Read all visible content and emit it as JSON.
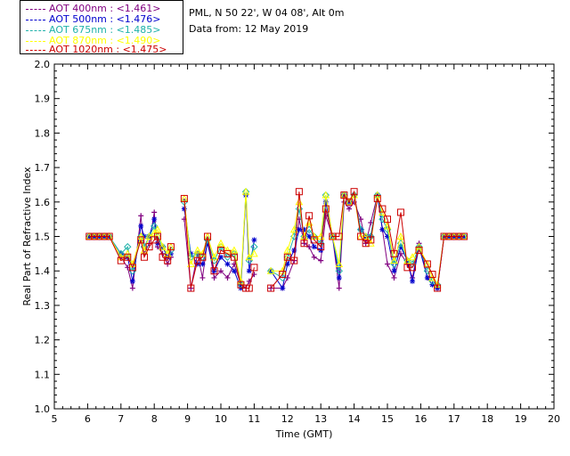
{
  "info": {
    "site": "PML, N 50 22', W 04 08', Alt 0m",
    "date": "Data from: 12 May 2019"
  },
  "chart_data": {
    "type": "line",
    "xlabel": "Time (GMT)",
    "ylabel": "Real Part of Refractive Index",
    "xlim": [
      5,
      20
    ],
    "ylim": [
      1.0,
      2.0
    ],
    "xticks": [
      "5",
      "6",
      "7",
      "8",
      "9",
      "10",
      "11",
      "12",
      "13",
      "14",
      "15",
      "16",
      "17",
      "18",
      "19",
      "20"
    ],
    "yticks": [
      "1.0",
      "1.1",
      "1.2",
      "1.3",
      "1.4",
      "1.5",
      "1.6",
      "1.7",
      "1.8",
      "1.9",
      "2.0"
    ],
    "series": [
      {
        "name": "AOT 400nm : <1.461>",
        "color": "#800080",
        "marker": "plus",
        "x": [
          6.05,
          6.2,
          6.35,
          6.5,
          6.65,
          7.0,
          7.2,
          7.35,
          7.6,
          7.7,
          7.85,
          8.0,
          8.1,
          8.25,
          8.4,
          8.5,
          8.9,
          9.1,
          9.3,
          9.45,
          9.6,
          9.8,
          10.0,
          10.2,
          10.4,
          10.6,
          10.75,
          10.85,
          11.0,
          11.5,
          11.85,
          12.0,
          12.2,
          12.35,
          12.5,
          12.65,
          12.8,
          13.0,
          13.15,
          13.35,
          13.55,
          13.7,
          13.85,
          14.0,
          14.2,
          14.35,
          14.5,
          14.7,
          14.85,
          15.0,
          15.2,
          15.4,
          15.6,
          15.75,
          15.95,
          16.2,
          16.35,
          16.5,
          16.7,
          16.85,
          17.0,
          17.15,
          17.3
        ],
        "y": [
          1.5,
          1.5,
          1.5,
          1.5,
          1.5,
          1.44,
          1.41,
          1.35,
          1.56,
          1.45,
          1.48,
          1.57,
          1.47,
          1.45,
          1.42,
          1.44,
          1.55,
          1.35,
          1.45,
          1.38,
          1.49,
          1.38,
          1.4,
          1.38,
          1.42,
          1.36,
          1.35,
          1.37,
          1.39,
          1.35,
          1.35,
          1.38,
          1.43,
          1.55,
          1.48,
          1.47,
          1.44,
          1.43,
          1.56,
          1.5,
          1.35,
          1.6,
          1.58,
          1.6,
          1.55,
          1.48,
          1.54,
          1.62,
          1.52,
          1.42,
          1.38,
          1.45,
          1.42,
          1.38,
          1.48,
          1.38,
          1.36,
          1.35,
          1.5,
          1.5,
          1.5,
          1.5,
          1.5
        ]
      },
      {
        "name": "AOT 500nm : <1.476>",
        "color": "#0000cd",
        "marker": "star",
        "x": [
          6.05,
          6.2,
          6.35,
          6.5,
          6.65,
          7.0,
          7.2,
          7.35,
          7.6,
          7.7,
          7.85,
          8.0,
          8.1,
          8.25,
          8.4,
          8.5,
          8.9,
          9.1,
          9.3,
          9.45,
          9.6,
          9.8,
          10.0,
          10.2,
          10.4,
          10.6,
          10.75,
          10.85,
          11.0,
          11.5,
          11.85,
          12.0,
          12.2,
          12.35,
          12.5,
          12.65,
          12.8,
          13.0,
          13.15,
          13.35,
          13.55,
          13.7,
          13.85,
          14.0,
          14.2,
          14.35,
          14.5,
          14.7,
          14.85,
          15.0,
          15.2,
          15.4,
          15.6,
          15.75,
          15.95,
          16.2,
          16.35,
          16.5,
          16.7,
          16.85,
          17.0,
          17.15,
          17.3
        ],
        "y": [
          1.5,
          1.5,
          1.5,
          1.5,
          1.5,
          1.45,
          1.44,
          1.37,
          1.53,
          1.5,
          1.5,
          1.55,
          1.48,
          1.47,
          1.44,
          1.45,
          1.58,
          1.45,
          1.42,
          1.42,
          1.48,
          1.4,
          1.44,
          1.42,
          1.4,
          1.35,
          1.62,
          1.4,
          1.49,
          1.4,
          1.35,
          1.42,
          1.46,
          1.52,
          1.52,
          1.5,
          1.47,
          1.46,
          1.6,
          1.5,
          1.38,
          1.62,
          1.6,
          1.62,
          1.52,
          1.5,
          1.5,
          1.62,
          1.52,
          1.5,
          1.4,
          1.47,
          1.43,
          1.37,
          1.47,
          1.38,
          1.36,
          1.35,
          1.5,
          1.5,
          1.5,
          1.5,
          1.5
        ]
      },
      {
        "name": "AOT 675nm : <1.485>",
        "color": "#20b2aa",
        "marker": "diamond",
        "x": [
          6.05,
          6.2,
          6.35,
          6.5,
          6.65,
          7.0,
          7.2,
          7.35,
          7.6,
          7.7,
          7.85,
          8.0,
          8.1,
          8.25,
          8.4,
          8.5,
          8.9,
          9.1,
          9.3,
          9.45,
          9.6,
          9.8,
          10.0,
          10.2,
          10.4,
          10.6,
          10.75,
          10.85,
          11.0,
          11.5,
          11.85,
          12.0,
          12.2,
          12.35,
          12.5,
          12.65,
          12.8,
          13.0,
          13.15,
          13.35,
          13.55,
          13.7,
          13.85,
          14.0,
          14.2,
          14.35,
          14.5,
          14.7,
          14.85,
          15.0,
          15.2,
          15.4,
          15.6,
          15.75,
          15.95,
          16.2,
          16.35,
          16.5,
          16.7,
          16.85,
          17.0,
          17.15,
          17.3
        ],
        "y": [
          1.5,
          1.5,
          1.5,
          1.5,
          1.5,
          1.45,
          1.47,
          1.4,
          1.5,
          1.47,
          1.5,
          1.53,
          1.5,
          1.47,
          1.45,
          1.46,
          1.6,
          1.44,
          1.45,
          1.44,
          1.49,
          1.43,
          1.47,
          1.44,
          1.45,
          1.36,
          1.63,
          1.43,
          1.47,
          1.4,
          1.38,
          1.44,
          1.5,
          1.58,
          1.5,
          1.52,
          1.5,
          1.48,
          1.62,
          1.5,
          1.4,
          1.62,
          1.6,
          1.62,
          1.52,
          1.5,
          1.5,
          1.62,
          1.55,
          1.52,
          1.42,
          1.48,
          1.43,
          1.42,
          1.47,
          1.4,
          1.37,
          1.36,
          1.5,
          1.5,
          1.5,
          1.5,
          1.5
        ]
      },
      {
        "name": "AOT 870nm : <1.490>",
        "color": "#ffff00",
        "marker": "triangle",
        "x": [
          6.05,
          6.2,
          6.35,
          6.5,
          6.65,
          7.0,
          7.2,
          7.35,
          7.6,
          7.7,
          7.85,
          8.0,
          8.1,
          8.25,
          8.4,
          8.5,
          8.9,
          9.1,
          9.3,
          9.45,
          9.6,
          9.8,
          10.0,
          10.2,
          10.4,
          10.6,
          10.75,
          10.85,
          11.0,
          11.5,
          11.85,
          12.0,
          12.2,
          12.35,
          12.5,
          12.65,
          12.8,
          13.0,
          13.15,
          13.35,
          13.55,
          13.7,
          13.85,
          14.0,
          14.2,
          14.35,
          14.5,
          14.7,
          14.85,
          15.0,
          15.2,
          15.4,
          15.6,
          15.75,
          15.95,
          16.2,
          16.35,
          16.5,
          16.7,
          16.85,
          17.0,
          17.15,
          17.3
        ],
        "y": [
          1.5,
          1.5,
          1.5,
          1.5,
          1.5,
          1.44,
          1.45,
          1.42,
          1.5,
          1.46,
          1.5,
          1.51,
          1.52,
          1.47,
          1.45,
          1.47,
          1.61,
          1.42,
          1.46,
          1.45,
          1.5,
          1.44,
          1.48,
          1.46,
          1.46,
          1.37,
          1.63,
          1.44,
          1.45,
          1.4,
          1.4,
          1.46,
          1.52,
          1.6,
          1.5,
          1.54,
          1.5,
          1.5,
          1.62,
          1.5,
          1.42,
          1.62,
          1.6,
          1.62,
          1.5,
          1.5,
          1.48,
          1.62,
          1.57,
          1.53,
          1.43,
          1.5,
          1.43,
          1.44,
          1.47,
          1.42,
          1.38,
          1.36,
          1.5,
          1.5,
          1.5,
          1.5,
          1.5
        ]
      },
      {
        "name": "AOT 1020nm : <1.475>",
        "color": "#cc0000",
        "marker": "square",
        "x": [
          6.05,
          6.2,
          6.35,
          6.5,
          6.65,
          7.0,
          7.2,
          7.35,
          7.6,
          7.7,
          7.85,
          8.0,
          8.1,
          8.25,
          8.4,
          8.5,
          8.9,
          9.1,
          9.3,
          9.45,
          9.6,
          9.8,
          10.0,
          10.2,
          10.4,
          10.6,
          10.75,
          10.85,
          11.0,
          11.5,
          11.85,
          12.0,
          12.2,
          12.35,
          12.5,
          12.65,
          12.8,
          13.0,
          13.15,
          13.35,
          13.55,
          13.7,
          13.85,
          14.0,
          14.2,
          14.35,
          14.5,
          14.7,
          14.85,
          15.0,
          15.2,
          15.4,
          15.6,
          15.75,
          15.95,
          16.2,
          16.35,
          16.5,
          16.7,
          16.85,
          17.0,
          17.15,
          17.3
        ],
        "y": [
          1.5,
          1.5,
          1.5,
          1.5,
          1.5,
          1.43,
          1.44,
          1.41,
          1.49,
          1.44,
          1.47,
          1.49,
          1.5,
          1.44,
          1.43,
          1.47,
          1.61,
          1.35,
          1.43,
          1.44,
          1.5,
          1.4,
          1.46,
          1.45,
          1.44,
          1.36,
          1.35,
          1.35,
          1.41,
          1.35,
          1.39,
          1.44,
          1.43,
          1.63,
          1.48,
          1.56,
          1.49,
          1.47,
          1.58,
          1.5,
          1.5,
          1.62,
          1.6,
          1.63,
          1.5,
          1.48,
          1.49,
          1.61,
          1.58,
          1.55,
          1.45,
          1.57,
          1.41,
          1.41,
          1.46,
          1.42,
          1.39,
          1.35,
          1.5,
          1.5,
          1.5,
          1.5,
          1.5
        ]
      }
    ]
  }
}
